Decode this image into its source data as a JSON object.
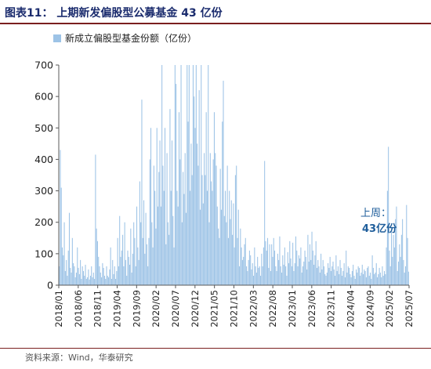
{
  "title": "图表11： 上期新发偏股型公募基金 43 亿份",
  "source": "资料来源：Wind，华泰研究",
  "colors": {
    "bar": "#9dc3e6",
    "axis": "#595959",
    "annotation": "#1f5e9b"
  },
  "chart_data": {
    "type": "bar",
    "legend": "新成立偏股型基金份额（亿份）",
    "legend_position": "top-left",
    "grid": false,
    "ylim": [
      0,
      700
    ],
    "yticks": [
      0,
      100,
      200,
      300,
      400,
      500,
      600,
      700
    ],
    "x_range": [
      "2018-01",
      "2025-07"
    ],
    "xtick_labels": [
      "2018/01",
      "2018/06",
      "2018/11",
      "2019/04",
      "2019/09",
      "2020/02",
      "2020/07",
      "2020/12",
      "2021/05",
      "2021/10",
      "2022/03",
      "2022/08",
      "2023/01",
      "2023/06",
      "2023/11",
      "2024/04",
      "2024/09",
      "2025/02",
      "2025/07"
    ],
    "annotation": {
      "line1": "上周：",
      "line2": "43亿份",
      "value": 43
    },
    "series": [
      {
        "frequency": "weekly",
        "values": [
          60,
          430,
          310,
          120,
          95,
          200,
          45,
          80,
          30,
          110,
          230,
          55,
          40,
          150,
          70,
          60,
          25,
          40,
          120,
          55,
          35,
          80,
          20,
          60,
          45,
          30,
          65,
          20,
          25,
          50,
          18,
          30,
          60,
          25,
          40,
          20,
          415,
          180,
          140,
          90,
          60,
          40,
          25,
          70,
          55,
          30,
          20,
          60,
          30,
          25,
          50,
          120,
          20,
          80,
          35,
          60,
          20,
          45,
          150,
          60,
          220,
          90,
          110,
          160,
          60,
          200,
          80,
          30,
          110,
          90,
          65,
          180,
          40,
          100,
          200,
          150,
          60,
          250,
          120,
          80,
          330,
          200,
          590,
          150,
          270,
          100,
          230,
          130,
          60,
          150,
          400,
          500,
          200,
          120,
          380,
          300,
          180,
          500,
          250,
          360,
          460,
          250,
          700,
          380,
          300,
          500,
          130,
          420,
          200,
          160,
          560,
          300,
          460,
          220,
          120,
          700,
          640,
          300,
          250,
          550,
          400,
          700,
          200,
          360,
          290,
          420,
          230,
          700,
          520,
          700,
          300,
          450,
          350,
          700,
          600,
          500,
          700,
          450,
          380,
          620,
          240,
          700,
          350,
          260,
          420,
          350,
          550,
          300,
          700,
          200,
          420,
          330,
          300,
          400,
          550,
          420,
          380,
          250,
          180,
          150,
          370,
          240,
          520,
          650,
          220,
          300,
          200,
          380,
          150,
          300,
          210,
          270,
          160,
          260,
          120,
          350,
          380,
          150,
          240,
          60,
          180,
          120,
          80,
          90,
          130,
          150,
          60,
          45,
          80,
          110,
          95,
          50,
          70,
          30,
          120,
          60,
          40,
          90,
          55,
          60,
          30,
          100,
          60,
          120,
          395,
          140,
          110,
          150,
          55,
          130,
          45,
          130,
          90,
          150,
          110,
          60,
          45,
          100,
          80,
          155,
          60,
          40,
          95,
          65,
          120,
          60,
          30,
          105,
          70,
          140,
          85,
          60,
          135,
          45,
          70,
          155,
          110,
          60,
          95,
          85,
          120,
          40,
          60,
          75,
          110,
          90,
          50,
          160,
          75,
          130,
          80,
          170,
          110,
          65,
          95,
          140,
          55,
          80,
          60,
          40,
          100,
          50,
          80,
          60,
          35,
          30,
          40,
          70,
          55,
          90,
          45,
          60,
          75,
          50,
          30,
          95,
          45,
          60,
          35,
          80,
          55,
          30,
          45,
          70,
          25,
          110,
          40,
          60,
          55,
          35,
          25,
          45,
          65,
          30,
          20,
          50,
          40,
          60,
          55,
          30,
          40,
          65,
          35,
          50,
          45,
          25,
          55,
          60,
          30,
          40,
          20,
          95,
          55,
          35,
          40,
          70,
          25,
          35,
          55,
          40,
          25,
          60,
          30,
          45,
          35,
          120,
          300,
          440,
          110,
          60,
          180,
          90,
          160,
          120,
          210,
          250,
          45,
          75,
          130,
          90,
          160,
          210,
          80,
          40,
          60,
          255,
          150,
          43
        ]
      }
    ]
  }
}
